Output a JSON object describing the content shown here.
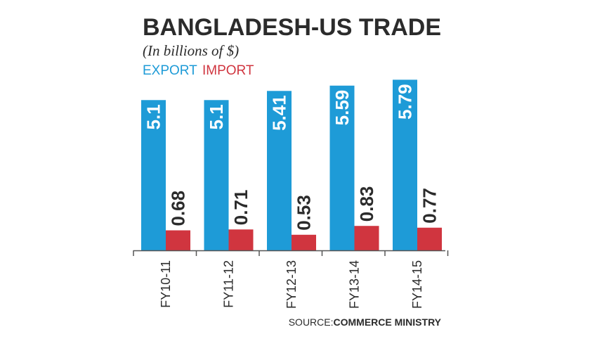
{
  "chart_data": {
    "type": "bar",
    "title": "BANGLADESH-US TRADE",
    "subtitle": "(In billions of $)",
    "categories": [
      "FY10-11",
      "FY11-12",
      "FY12-13",
      "FY13-14",
      "FY14-15"
    ],
    "series": [
      {
        "name": "EXPORT",
        "color": "#1e9bd7",
        "values": [
          5.1,
          5.1,
          5.41,
          5.59,
          5.79
        ],
        "labels": [
          "5.1",
          "5.1",
          "5.41",
          "5.59",
          "5.79"
        ]
      },
      {
        "name": "IMPORT",
        "color": "#d0353f",
        "values": [
          0.68,
          0.71,
          0.53,
          0.83,
          0.77
        ],
        "labels": [
          "0.68",
          "0.71",
          "0.53",
          "0.83",
          "0.77"
        ]
      }
    ],
    "ylim": [
      0,
      6.3
    ],
    "grid": false,
    "legend_position": "top-left",
    "export_label_color": "#ffffff",
    "import_label_color": "#2b2b2b"
  },
  "source": {
    "prefix": "SOURCE:",
    "name": "COMMERCE MINISTRY"
  }
}
